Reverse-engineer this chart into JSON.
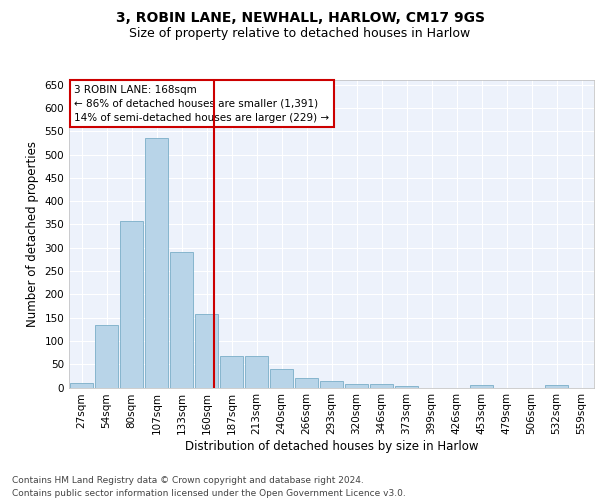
{
  "title1": "3, ROBIN LANE, NEWHALL, HARLOW, CM17 9GS",
  "title2": "Size of property relative to detached houses in Harlow",
  "xlabel": "Distribution of detached houses by size in Harlow",
  "ylabel": "Number of detached properties",
  "footnote1": "Contains HM Land Registry data © Crown copyright and database right 2024.",
  "footnote2": "Contains public sector information licensed under the Open Government Licence v3.0.",
  "categories": [
    "27sqm",
    "54sqm",
    "80sqm",
    "107sqm",
    "133sqm",
    "160sqm",
    "187sqm",
    "213sqm",
    "240sqm",
    "266sqm",
    "293sqm",
    "320sqm",
    "346sqm",
    "373sqm",
    "399sqm",
    "426sqm",
    "453sqm",
    "479sqm",
    "506sqm",
    "532sqm",
    "559sqm"
  ],
  "values": [
    10,
    135,
    358,
    535,
    290,
    157,
    67,
    67,
    40,
    20,
    15,
    8,
    8,
    3,
    0,
    0,
    5,
    0,
    0,
    5,
    0
  ],
  "bar_color": "#b8d4e8",
  "bar_edge_color": "#7aaec8",
  "annotation_text": "3 ROBIN LANE: 168sqm\n← 86% of detached houses are smaller (1,391)\n14% of semi-detached houses are larger (229) →",
  "vline_color": "#cc0000",
  "ylim": [
    0,
    660
  ],
  "yticks": [
    0,
    50,
    100,
    150,
    200,
    250,
    300,
    350,
    400,
    450,
    500,
    550,
    600,
    650
  ],
  "background_color": "#edf2fb",
  "annotation_box_color": "#ffffff",
  "annotation_box_edge_color": "#cc0000",
  "title1_fontsize": 10,
  "title2_fontsize": 9,
  "xlabel_fontsize": 8.5,
  "ylabel_fontsize": 8.5,
  "tick_fontsize": 7.5,
  "annotation_fontsize": 7.5,
  "footnote_fontsize": 6.5
}
